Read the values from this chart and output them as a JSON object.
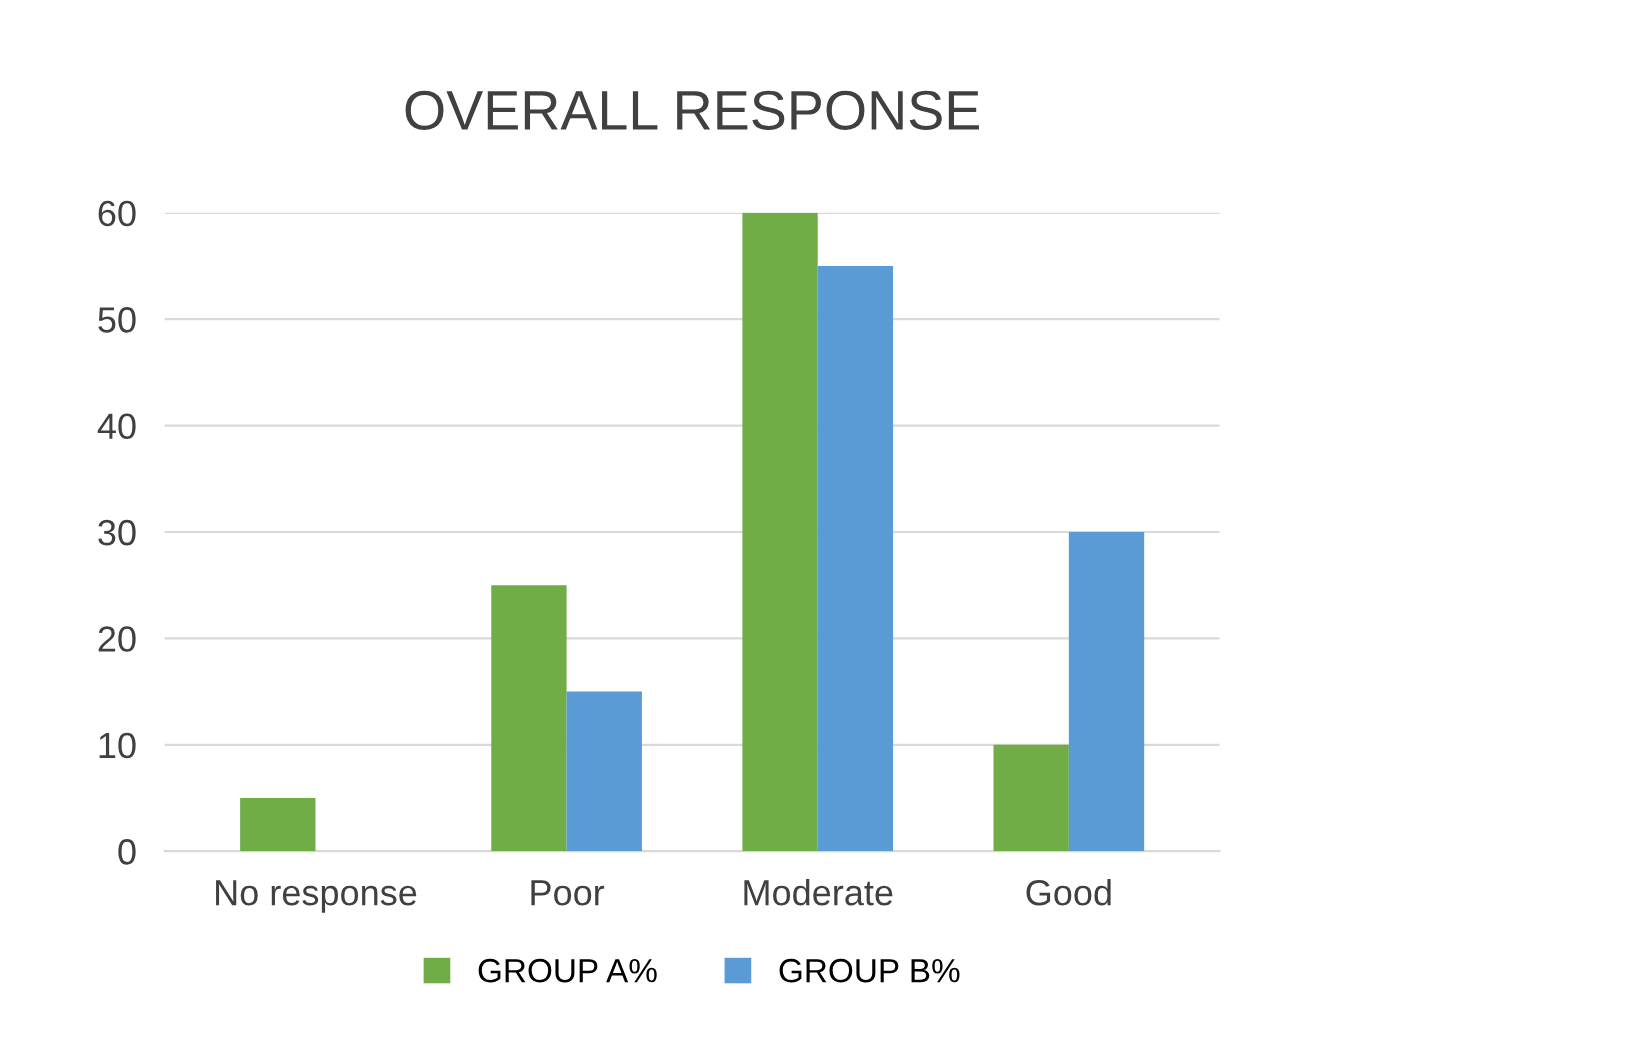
{
  "chart_data": {
    "type": "bar",
    "title": "OVERALL RESPONSE",
    "categories": [
      "No response",
      "Poor",
      "Moderate",
      "Good"
    ],
    "series": [
      {
        "name": "GROUP A%",
        "color": "#70ad47",
        "values": [
          5,
          25,
          60,
          10
        ]
      },
      {
        "name": "GROUP B%",
        "color": "#5b9bd5",
        "values": [
          0,
          15,
          55,
          30
        ]
      }
    ],
    "ylim": [
      0,
      60
    ],
    "yticks": [
      0,
      10,
      20,
      30,
      40,
      50,
      60
    ],
    "grid": "y",
    "legend": "bottom"
  }
}
